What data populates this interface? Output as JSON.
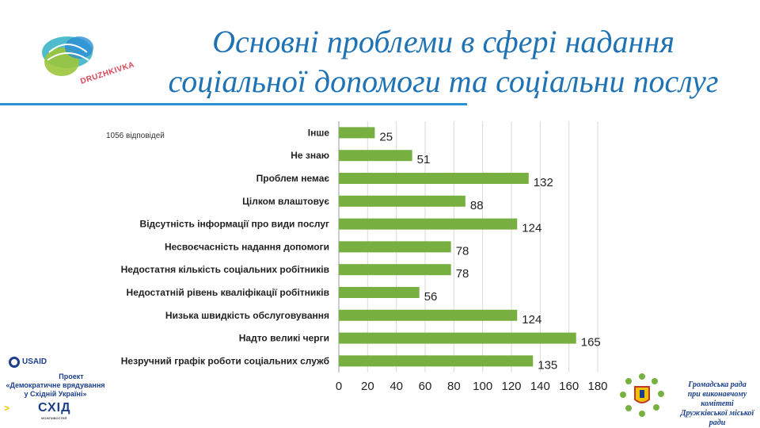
{
  "title": {
    "line1": "Основні проблеми в сфері надання",
    "line2": "соціальної допомоги та соціальни послуг"
  },
  "logo_text": "DRUZHKIVKA",
  "responses_note": "1056 відповідей",
  "colors": {
    "bar": "#77b041",
    "title": "#1f73b4",
    "divider": "#2a8fd4",
    "grid": "#d9d9d9"
  },
  "chart_data": {
    "type": "bar",
    "orientation": "horizontal",
    "categories": [
      "Інше",
      "Не знаю",
      "Проблем немає",
      "Цілком влаштовує",
      "Відсутність інформації про види послуг",
      "Несвоєчасність надання допомоги",
      "Недостатня кількість соціальних робітників",
      "Недостатній рівень кваліфікації робітників",
      "Низька швидкість обслуговування",
      "Надто великі черги",
      "Незручний графік роботи соціальних служб"
    ],
    "values": [
      25,
      51,
      132,
      88,
      124,
      78,
      78,
      56,
      124,
      165,
      135
    ],
    "xlim": [
      0,
      180
    ],
    "xticks": [
      0,
      20,
      40,
      60,
      80,
      100,
      120,
      140,
      160,
      180
    ],
    "grid": true,
    "data_labels": true
  },
  "footer_left": {
    "usaid": "USAID",
    "project_line1": "Проект",
    "project_line2": "«Демократичне врядування",
    "project_line3": "у Східній Україні»",
    "cxid": "СХІД",
    "cxid_sub": "МОЖЛИВОСТЕЙ"
  },
  "footer_right": {
    "line1": "Громадська рада",
    "line2": "при виконавчому комітеті",
    "line3": "Дружківської міської ради"
  }
}
